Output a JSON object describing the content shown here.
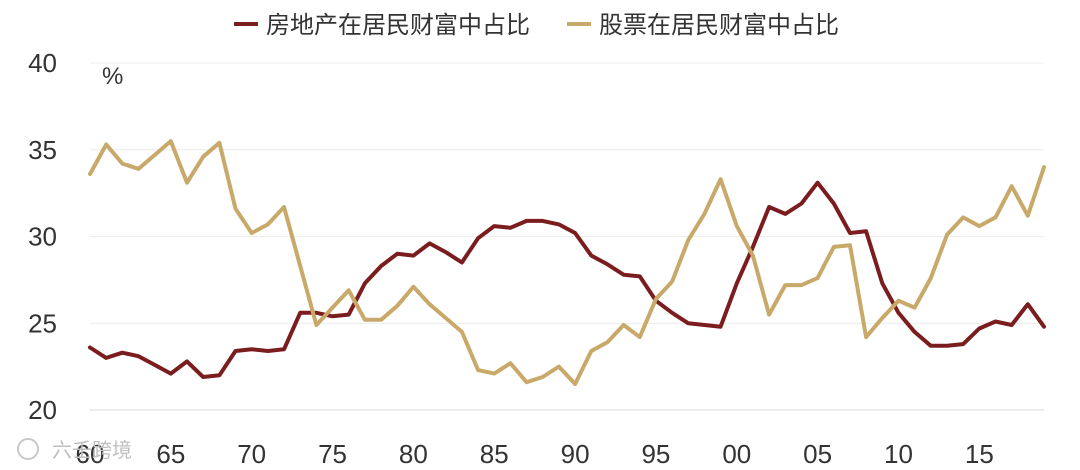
{
  "watermark": "六壬跨境",
  "chart_data": {
    "type": "line",
    "unit_label": "%",
    "ylim": [
      20,
      40
    ],
    "yticks": [
      20,
      25,
      30,
      35,
      40
    ],
    "xlim": [
      1960,
      2019
    ],
    "xticks": [
      {
        "year": 1960,
        "label": "60"
      },
      {
        "year": 1965,
        "label": "65"
      },
      {
        "year": 1970,
        "label": "70"
      },
      {
        "year": 1975,
        "label": "75"
      },
      {
        "year": 1980,
        "label": "80"
      },
      {
        "year": 1985,
        "label": "85"
      },
      {
        "year": 1990,
        "label": "90"
      },
      {
        "year": 1995,
        "label": "95"
      },
      {
        "year": 2000,
        "label": "00"
      },
      {
        "year": 2005,
        "label": "05"
      },
      {
        "year": 2010,
        "label": "10"
      },
      {
        "year": 2015,
        "label": "15"
      }
    ],
    "grid": "horizontal",
    "legend_position": "top",
    "x": [
      1960,
      1961,
      1962,
      1963,
      1964,
      1965,
      1966,
      1967,
      1968,
      1969,
      1970,
      1971,
      1972,
      1973,
      1974,
      1975,
      1976,
      1977,
      1978,
      1979,
      1980,
      1981,
      1982,
      1983,
      1984,
      1985,
      1986,
      1987,
      1988,
      1989,
      1990,
      1991,
      1992,
      1993,
      1994,
      1995,
      1996,
      1997,
      1998,
      1999,
      2000,
      2001,
      2002,
      2003,
      2004,
      2005,
      2006,
      2007,
      2008,
      2009,
      2010,
      2011,
      2012,
      2013,
      2014,
      2015,
      2016,
      2017,
      2018,
      2019
    ],
    "series": [
      {
        "name": "房地产在居民财富中占比",
        "color": "#7b1c1e",
        "values": [
          23.6,
          23.0,
          23.3,
          23.1,
          22.6,
          22.1,
          22.8,
          21.9,
          22.0,
          23.4,
          23.5,
          23.4,
          23.5,
          25.6,
          25.6,
          25.4,
          25.5,
          27.3,
          28.3,
          29.0,
          28.9,
          29.6,
          29.1,
          28.5,
          29.9,
          30.6,
          30.5,
          30.9,
          30.9,
          30.7,
          30.2,
          28.9,
          28.4,
          27.8,
          27.7,
          26.3,
          25.6,
          25.0,
          24.9,
          24.8,
          27.3,
          29.4,
          31.7,
          31.3,
          31.9,
          33.1,
          31.9,
          30.2,
          30.3,
          27.3,
          25.6,
          24.5,
          23.7,
          23.7,
          23.8,
          24.7,
          25.1,
          24.9,
          26.1,
          24.8
        ]
      },
      {
        "name": "股票在居民财富中占比",
        "color": "#c8a96a",
        "values": [
          33.6,
          35.3,
          34.2,
          33.9,
          34.7,
          35.5,
          33.1,
          34.6,
          35.4,
          31.6,
          30.2,
          30.7,
          31.7,
          28.3,
          24.9,
          25.9,
          26.9,
          25.2,
          25.2,
          26.0,
          27.1,
          26.1,
          25.3,
          24.5,
          22.3,
          22.1,
          22.7,
          21.6,
          21.9,
          22.5,
          21.5,
          23.4,
          23.9,
          24.9,
          24.2,
          26.4,
          27.4,
          29.8,
          31.3,
          33.3,
          30.6,
          28.9,
          25.5,
          27.2,
          27.2,
          27.6,
          29.4,
          29.5,
          24.2,
          25.3,
          26.3,
          25.9,
          27.6,
          30.1,
          31.1,
          30.6,
          31.1,
          32.9,
          31.2,
          34.0
        ]
      }
    ]
  }
}
